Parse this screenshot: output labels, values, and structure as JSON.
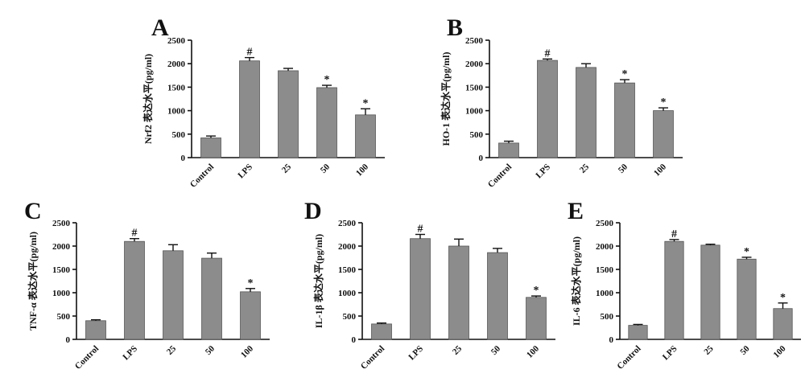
{
  "colors": {
    "bar": "#8c8c8c",
    "bar_edge": "#555555",
    "axis": "#111111"
  },
  "chart_data": [
    {
      "type": "bar",
      "panel": "A",
      "ylabel": "Nrf2 表达水平(pg/ml)",
      "ylim": [
        0,
        2500
      ],
      "yticks": [
        "0",
        "500",
        "1000",
        "1500",
        "2000",
        "2500"
      ],
      "categories": [
        "Control",
        "LPS",
        "25",
        "50",
        "100"
      ],
      "values": [
        420,
        2060,
        1850,
        1490,
        910
      ],
      "errors": [
        40,
        70,
        50,
        50,
        130
      ],
      "marks": [
        "",
        "#",
        "",
        "*",
        "*"
      ],
      "grid": false,
      "legend": "none"
    },
    {
      "type": "bar",
      "panel": "B",
      "ylabel": "HO-1 表达水平(pg/ml)",
      "ylim": [
        0,
        2500
      ],
      "yticks": [
        "0",
        "500",
        "1000",
        "1500",
        "2000",
        "2500"
      ],
      "categories": [
        "Control",
        "LPS",
        "25",
        "50",
        "100"
      ],
      "values": [
        310,
        2070,
        1920,
        1590,
        1000
      ],
      "errors": [
        40,
        30,
        80,
        70,
        60
      ],
      "marks": [
        "",
        "#",
        "",
        "*",
        "*"
      ],
      "grid": false,
      "legend": "none"
    },
    {
      "type": "bar",
      "panel": "C",
      "ylabel": "TNF-α 表达水平(pg/ml)",
      "ylim": [
        0,
        2500
      ],
      "yticks": [
        "0",
        "500",
        "1000",
        "1500",
        "2000",
        "2500"
      ],
      "categories": [
        "Control",
        "LPS",
        "25",
        "50",
        "100"
      ],
      "values": [
        400,
        2100,
        1900,
        1740,
        1020
      ],
      "errors": [
        20,
        60,
        130,
        110,
        70
      ],
      "marks": [
        "",
        "#",
        "",
        "",
        "*"
      ],
      "grid": false,
      "legend": "none"
    },
    {
      "type": "bar",
      "panel": "D",
      "ylabel": "IL-1β 表达水平(pg/ml)",
      "ylim": [
        0,
        2500
      ],
      "yticks": [
        "0",
        "500",
        "1000",
        "1500",
        "2000",
        "2500"
      ],
      "categories": [
        "Control",
        "LPS",
        "25",
        "50",
        "100"
      ],
      "values": [
        330,
        2160,
        2000,
        1860,
        900
      ],
      "errors": [
        20,
        90,
        150,
        90,
        30
      ],
      "marks": [
        "",
        "#",
        "",
        "",
        "*"
      ],
      "grid": false,
      "legend": "none"
    },
    {
      "type": "bar",
      "panel": "E",
      "ylabel": "IL-6 表达水平(pg/ml)",
      "ylim": [
        0,
        2500
      ],
      "yticks": [
        "0",
        "500",
        "1000",
        "1500",
        "2000",
        "2500"
      ],
      "categories": [
        "Control",
        "LPS",
        "25",
        "50",
        "100"
      ],
      "values": [
        300,
        2100,
        2020,
        1720,
        660
      ],
      "errors": [
        20,
        40,
        20,
        40,
        120
      ],
      "marks": [
        "",
        "#",
        "",
        "*",
        "*"
      ],
      "grid": false,
      "legend": "none"
    }
  ]
}
